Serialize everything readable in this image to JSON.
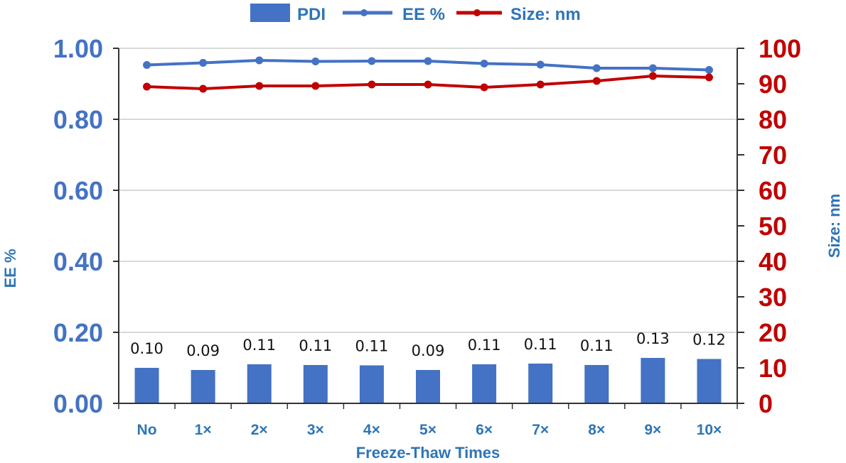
{
  "chart_data": {
    "type": "bar+line",
    "categories": [
      "No",
      "1×",
      "2×",
      "3×",
      "4×",
      "5×",
      "6×",
      "7×",
      "8×",
      "9×",
      "10×"
    ],
    "xlabel": "Freeze-Thaw Times",
    "ylabel_left": "EE %",
    "ylabel_right": "Size: nm",
    "ylim_left": [
      0,
      1.0
    ],
    "ylim_right": [
      0,
      100
    ],
    "yticks_left": [
      "0.00",
      "0.20",
      "0.40",
      "0.60",
      "0.80",
      "1.00"
    ],
    "yticks_right": [
      "0",
      "10",
      "20",
      "30",
      "40",
      "50",
      "60",
      "70",
      "80",
      "90",
      "100"
    ],
    "grid": true,
    "legend_position": "top",
    "series": [
      {
        "name": "PDI",
        "kind": "bar",
        "axis": "left",
        "color": "#4472c4",
        "values": [
          0.1,
          0.094,
          0.11,
          0.108,
          0.107,
          0.094,
          0.11,
          0.112,
          0.108,
          0.128,
          0.125
        ],
        "labels": [
          "0.10",
          "0.09",
          "0.11",
          "0.11",
          "0.11",
          "0.09",
          "0.11",
          "0.11",
          "0.11",
          "0.13",
          "0.12"
        ]
      },
      {
        "name": "EE %",
        "kind": "line",
        "axis": "left",
        "color": "#4472c4",
        "values": [
          0.953,
          0.959,
          0.966,
          0.963,
          0.964,
          0.964,
          0.957,
          0.954,
          0.944,
          0.944,
          0.939
        ]
      },
      {
        "name": "Size: nm",
        "kind": "line",
        "axis": "right",
        "color": "#c00000",
        "values": [
          89.2,
          88.6,
          89.4,
          89.4,
          89.8,
          89.8,
          89.0,
          89.8,
          90.8,
          92.2,
          91.8
        ]
      }
    ],
    "colors": {
      "left_axis": "#4472c4",
      "right_axis": "#c00000",
      "axis_title": "#2e75b6",
      "grid": "#d9d9d9"
    }
  }
}
